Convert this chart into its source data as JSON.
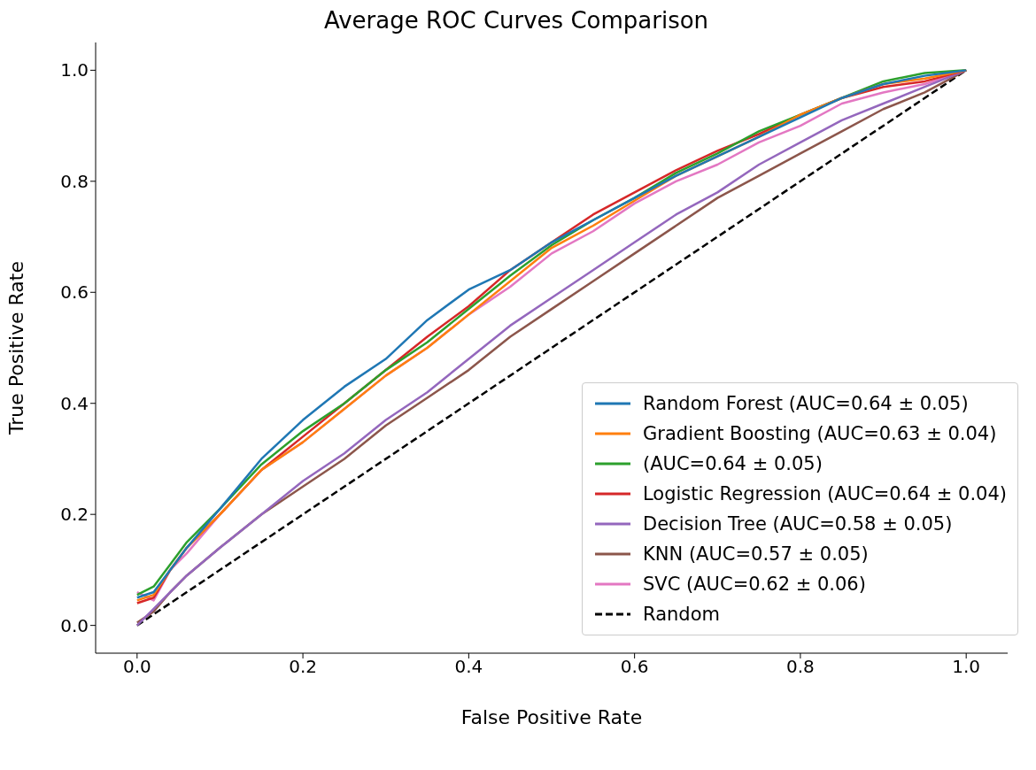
{
  "chart_data": {
    "type": "line",
    "title": "Average ROC Curves Comparison",
    "xlabel": "False Positive Rate",
    "ylabel": "True Positive Rate",
    "x": [
      0,
      0.02,
      0.04,
      0.06,
      0.1,
      0.15,
      0.2,
      0.25,
      0.3,
      0.35,
      0.4,
      0.45,
      0.5,
      0.55,
      0.6,
      0.65,
      0.7,
      0.75,
      0.8,
      0.85,
      0.9,
      0.95,
      1
    ],
    "series": [
      {
        "name": "Random Forest (AUC=0.64 ± 0.05)",
        "color": "#1f77b4",
        "values": [
          0.05,
          0.06,
          0.1,
          0.14,
          0.21,
          0.3,
          0.37,
          0.43,
          0.48,
          0.55,
          0.605,
          0.64,
          0.69,
          0.73,
          0.77,
          0.81,
          0.845,
          0.88,
          0.915,
          0.95,
          0.975,
          0.99,
          1
        ]
      },
      {
        "name": "Gradient Boosting (AUC=0.63 ± 0.04)",
        "color": "#ff7f0e",
        "values": [
          0.045,
          0.055,
          0.1,
          0.14,
          0.2,
          0.28,
          0.33,
          0.39,
          0.45,
          0.5,
          0.56,
          0.62,
          0.68,
          0.72,
          0.765,
          0.81,
          0.845,
          0.88,
          0.92,
          0.95,
          0.975,
          0.985,
          1
        ]
      },
      {
        "name": "(AUC=0.64 ± 0.05)",
        "color": "#2ca02c",
        "values": [
          0.055,
          0.07,
          0.11,
          0.15,
          0.21,
          0.29,
          0.35,
          0.4,
          0.46,
          0.51,
          0.57,
          0.63,
          0.685,
          0.73,
          0.77,
          0.815,
          0.85,
          0.89,
          0.92,
          0.95,
          0.98,
          0.995,
          1
        ]
      },
      {
        "name": "Logistic Regression (AUC=0.64 ± 0.04)",
        "color": "#d62728",
        "values": [
          0.04,
          0.05,
          0.1,
          0.14,
          0.2,
          0.28,
          0.34,
          0.4,
          0.46,
          0.52,
          0.575,
          0.64,
          0.69,
          0.74,
          0.78,
          0.82,
          0.855,
          0.885,
          0.92,
          0.95,
          0.97,
          0.98,
          1
        ]
      },
      {
        "name": "Decision Tree (AUC=0.58 ± 0.05)",
        "color": "#9467bd",
        "values": [
          0,
          0.03,
          0.06,
          0.09,
          0.14,
          0.2,
          0.26,
          0.31,
          0.37,
          0.42,
          0.48,
          0.54,
          0.59,
          0.64,
          0.69,
          0.74,
          0.78,
          0.83,
          0.87,
          0.91,
          0.94,
          0.97,
          1
        ]
      },
      {
        "name": "KNN (AUC=0.57 ± 0.05)",
        "color": "#8c564b",
        "values": [
          0.005,
          0.025,
          0.06,
          0.09,
          0.14,
          0.2,
          0.25,
          0.3,
          0.36,
          0.41,
          0.46,
          0.52,
          0.57,
          0.62,
          0.67,
          0.72,
          0.77,
          0.81,
          0.85,
          0.89,
          0.93,
          0.96,
          1
        ]
      },
      {
        "name": "SVC (AUC=0.62 ± 0.06)",
        "color": "#e377c2",
        "values": [
          0.06,
          0.045,
          0.1,
          0.13,
          0.2,
          0.28,
          0.33,
          0.39,
          0.45,
          0.5,
          0.56,
          0.61,
          0.67,
          0.71,
          0.76,
          0.8,
          0.83,
          0.87,
          0.9,
          0.94,
          0.96,
          0.975,
          1
        ]
      },
      {
        "name": "Random",
        "color": "#000000",
        "line_style": "dashed",
        "x": [
          0,
          1
        ],
        "values": [
          0,
          1
        ]
      }
    ],
    "xlim": [
      -0.05,
      1.05
    ],
    "ylim": [
      -0.05,
      1.05
    ],
    "xticks": [
      {
        "value": 0,
        "label": "0.0"
      },
      0.2,
      0.4,
      0.6,
      0.8,
      {
        "value": 1,
        "label": "1.0"
      }
    ],
    "yticks": [
      {
        "value": 0,
        "label": "0.0"
      },
      0.2,
      0.4,
      0.6,
      0.8,
      {
        "value": 1,
        "label": "1.0"
      }
    ],
    "grid": false,
    "legend": "bottom right",
    "marker": "none",
    "line_style": "solid"
  }
}
